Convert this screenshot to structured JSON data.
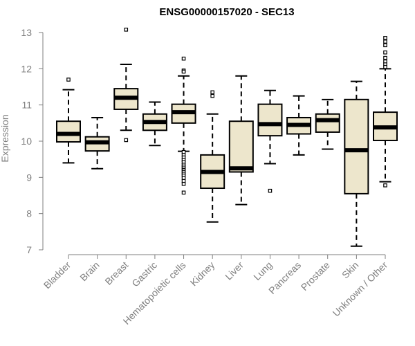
{
  "chart_data": {
    "type": "boxplot",
    "title": "ENSG00000157020 - SEC13",
    "xlabel": "",
    "ylabel": "Expression",
    "ylim": [
      7,
      13
    ],
    "yticks": [
      7,
      8,
      9,
      10,
      11,
      12,
      13
    ],
    "box_fill": "#ede6cc",
    "box_stroke": "#000000",
    "categories": [
      "Bladder",
      "Brain",
      "Breast",
      "Gastric",
      "Hematopoietic cells",
      "Kidney",
      "Liver",
      "Lung",
      "Pancreas",
      "Prostate",
      "Skin",
      "Unknown / Other"
    ],
    "boxes": [
      {
        "name": "Bladder",
        "whisker_low": 9.4,
        "q1": 9.98,
        "median": 10.2,
        "q3": 10.55,
        "whisker_high": 11.42,
        "outliers": [
          11.7
        ]
      },
      {
        "name": "Brain",
        "whisker_low": 9.24,
        "q1": 9.73,
        "median": 9.97,
        "q3": 10.12,
        "whisker_high": 10.65,
        "outliers": []
      },
      {
        "name": "Breast",
        "whisker_low": 10.3,
        "q1": 10.88,
        "median": 11.2,
        "q3": 11.45,
        "whisker_high": 12.12,
        "outliers": [
          10.03,
          13.08
        ]
      },
      {
        "name": "Gastric",
        "whisker_low": 9.88,
        "q1": 10.3,
        "median": 10.53,
        "q3": 10.75,
        "whisker_high": 11.08,
        "outliers": []
      },
      {
        "name": "Hematopoietic cells",
        "whisker_low": 9.72,
        "q1": 10.5,
        "median": 10.8,
        "q3": 11.02,
        "whisker_high": 11.8,
        "outliers": [
          12.28,
          11.95,
          11.92,
          9.7,
          9.62,
          9.55,
          9.48,
          9.42,
          9.35,
          9.3,
          9.25,
          9.2,
          9.15,
          9.1,
          9.05,
          8.98,
          8.9,
          8.82,
          8.58
        ]
      },
      {
        "name": "Kidney",
        "whisker_low": 7.77,
        "q1": 8.7,
        "median": 9.15,
        "q3": 9.62,
        "whisker_high": 10.75,
        "outliers": [
          11.25,
          11.35
        ]
      },
      {
        "name": "Liver",
        "whisker_low": 8.25,
        "q1": 9.15,
        "median": 9.25,
        "q3": 10.55,
        "whisker_high": 11.8,
        "outliers": []
      },
      {
        "name": "Lung",
        "whisker_low": 9.38,
        "q1": 10.15,
        "median": 10.47,
        "q3": 11.02,
        "whisker_high": 11.4,
        "outliers": [
          8.63
        ]
      },
      {
        "name": "Pancreas",
        "whisker_low": 9.62,
        "q1": 10.2,
        "median": 10.45,
        "q3": 10.65,
        "whisker_high": 11.25,
        "outliers": []
      },
      {
        "name": "Prostate",
        "whisker_low": 9.78,
        "q1": 10.25,
        "median": 10.58,
        "q3": 10.75,
        "whisker_high": 11.15,
        "outliers": []
      },
      {
        "name": "Skin",
        "whisker_low": 7.1,
        "q1": 8.55,
        "median": 9.75,
        "q3": 11.15,
        "whisker_high": 11.65,
        "outliers": []
      },
      {
        "name": "Unknown / Other",
        "whisker_low": 8.88,
        "q1": 10.02,
        "median": 10.38,
        "q3": 10.8,
        "whisker_high": 12.0,
        "outliers": [
          12.85,
          12.75,
          12.65,
          12.45,
          12.3,
          12.2,
          12.12,
          12.05,
          8.78
        ]
      }
    ]
  }
}
